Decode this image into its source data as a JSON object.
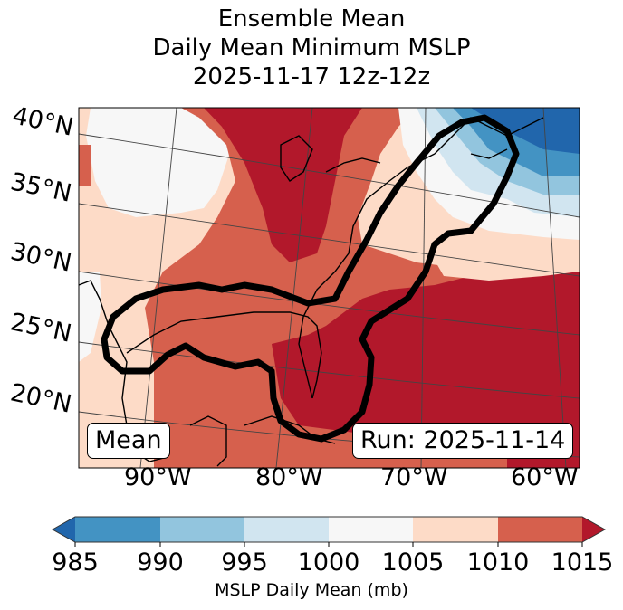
{
  "title": {
    "line1": "Ensemble Mean",
    "line2": "Daily Mean Minimum MSLP",
    "line3": "2025-11-17 12z-12z"
  },
  "map": {
    "lat_labels": [
      "40°N",
      "35°N",
      "30°N",
      "25°N",
      "20°N"
    ],
    "lon_labels": [
      "90°W",
      "80°W",
      "70°W",
      "60°W"
    ],
    "annotation_left": "Mean",
    "annotation_right": "Run: 2025-11-14",
    "contour_color": "#000000"
  },
  "colorbar": {
    "label": "MSLP Daily Mean (mb)",
    "ticks": [
      "985",
      "990",
      "995",
      "1000",
      "1005",
      "1010",
      "1015"
    ],
    "colors": {
      "under": "#2166ac",
      "985-990": "#4393c3",
      "990-995": "#92c5de",
      "995-1000": "#d1e5f0",
      "1000-1005": "#f7f7f7",
      "1005-1010": "#fddbc7",
      "1010-1015": "#d6604d",
      "over": "#b2182b"
    }
  }
}
